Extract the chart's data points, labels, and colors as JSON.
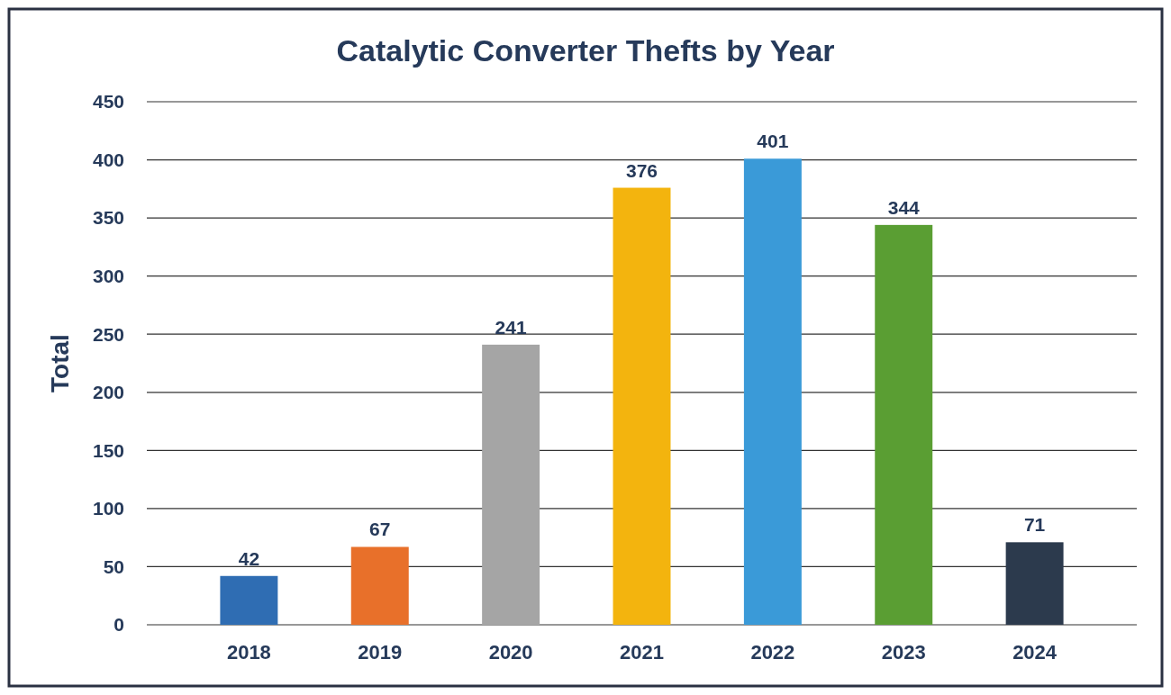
{
  "chart_data": {
    "type": "bar",
    "title": "Catalytic Converter Thefts by Year",
    "ylabel": "Total",
    "categories": [
      "2018",
      "2019",
      "2020",
      "2021",
      "2022",
      "2023",
      "2024"
    ],
    "values": [
      42,
      67,
      241,
      376,
      401,
      344,
      71
    ],
    "colors": [
      "#2f6db3",
      "#e8702a",
      "#a5a5a5",
      "#f3b40e",
      "#3a9ad8",
      "#5a9e33",
      "#2c3a4d"
    ],
    "ylim": [
      0,
      450
    ],
    "yticks": [
      0,
      50,
      100,
      150,
      200,
      250,
      300,
      350,
      400,
      450
    ],
    "grid": "y",
    "data_labels": true
  }
}
